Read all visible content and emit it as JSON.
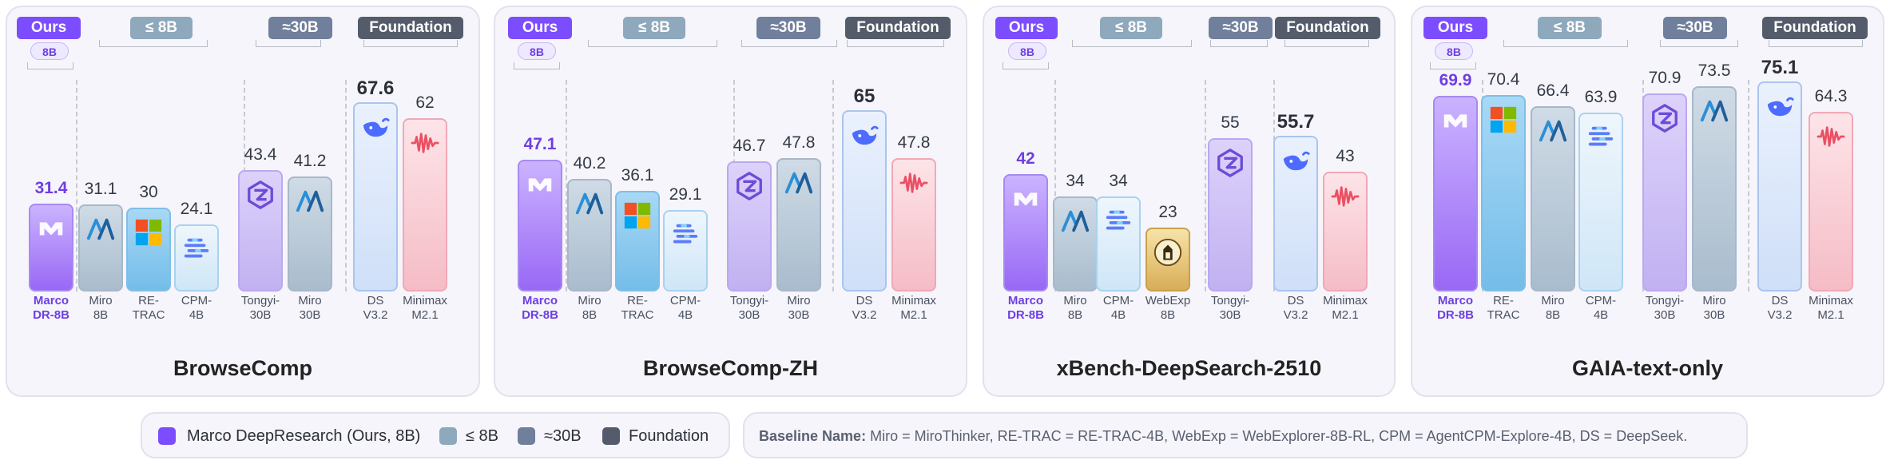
{
  "chips": {
    "ours": "Ours",
    "le8": "≤ 8B",
    "f30": "≈30B",
    "foundation": "Foundation",
    "pill": "8B"
  },
  "colors": {
    "ours": "#7c4dff",
    "le8": "#8ea8bc",
    "f30": "#6f7f9c",
    "foundation": "#545c6b"
  },
  "chart_data": [
    {
      "type": "bar",
      "title": "BrowseComp",
      "categories": [
        "Marco DR-8B",
        "Miro 8B",
        "RE-TRAC",
        "CPM-4B",
        "Tongyi-30B",
        "Miro 30B",
        "DS V3.2",
        "Minimax M2.1"
      ],
      "values": [
        31.4,
        31.1,
        30,
        24.1,
        43.4,
        41.2,
        67.6,
        62
      ],
      "value_labels": [
        "31.4",
        "31.1",
        "30",
        "24.1",
        "43.4",
        "41.2",
        "67.6",
        "62"
      ],
      "groups": [
        "Ours",
        "≤ 8B",
        "≤ 8B",
        "≤ 8B",
        "≈30B",
        "≈30B",
        "Foundation",
        "Foundation"
      ]
    },
    {
      "type": "bar",
      "title": "BrowseComp-ZH",
      "categories": [
        "Marco DR-8B",
        "Miro 8B",
        "RE-TRAC",
        "CPM-4B",
        "Tongyi-30B",
        "Miro 30B",
        "DS V3.2",
        "Minimax M2.1"
      ],
      "values": [
        47.1,
        40.2,
        36.1,
        29.1,
        46.7,
        47.8,
        65,
        47.8
      ],
      "value_labels": [
        "47.1",
        "40.2",
        "36.1",
        "29.1",
        "46.7",
        "47.8",
        "65",
        "47.8"
      ],
      "groups": [
        "Ours",
        "≤ 8B",
        "≤ 8B",
        "≤ 8B",
        "≈30B",
        "≈30B",
        "Foundation",
        "Foundation"
      ]
    },
    {
      "type": "bar",
      "title": "xBench-DeepSearch-2510",
      "categories": [
        "Marco DR-8B",
        "Miro 8B",
        "CPM-4B",
        "WebExp 8B",
        "Tongyi-30B",
        "DS V3.2",
        "Minimax M2.1"
      ],
      "values": [
        42,
        34,
        34,
        23,
        55,
        55.7,
        43
      ],
      "value_labels": [
        "42",
        "34",
        "34",
        "23",
        "55",
        "55.7",
        "43"
      ],
      "groups": [
        "Ours",
        "≤ 8B",
        "≤ 8B",
        "≤ 8B",
        "≈30B",
        "Foundation",
        "Foundation"
      ]
    },
    {
      "type": "bar",
      "title": "GAIA-text-only",
      "categories": [
        "Marco DR-8B",
        "RE-TRAC",
        "Miro 8B",
        "CPM-4B",
        "Tongyi-30B",
        "Miro 30B",
        "DS V3.2",
        "Minimax M2.1"
      ],
      "values": [
        69.9,
        70.4,
        66.4,
        63.9,
        70.9,
        73.5,
        75.1,
        64.3
      ],
      "value_labels": [
        "69.9",
        "70.4",
        "66.4",
        "63.9",
        "70.9",
        "73.5",
        "75.1",
        "64.3"
      ],
      "groups": [
        "Ours",
        "≤ 8B",
        "≤ 8B",
        "≤ 8B",
        "≈30B",
        "≈30B",
        "Foundation",
        "Foundation"
      ]
    }
  ],
  "legend": {
    "items": [
      {
        "label": "Marco DeepResearch (Ours, 8B)",
        "color": "#7c4dff"
      },
      {
        "label": "≤ 8B",
        "color": "#8ea8bc"
      },
      {
        "label": "≈30B",
        "color": "#6f7f9c"
      },
      {
        "label": "Foundation",
        "color": "#545c6b"
      }
    ],
    "note_label": "Baseline Name:",
    "note_text": "Miro = MiroThinker, RE-TRAC = RE-TRAC-4B, WebExp = WebExplorer-8B-RL, CPM = AgentCPM-Explore-4B, DS = DeepSeek."
  }
}
